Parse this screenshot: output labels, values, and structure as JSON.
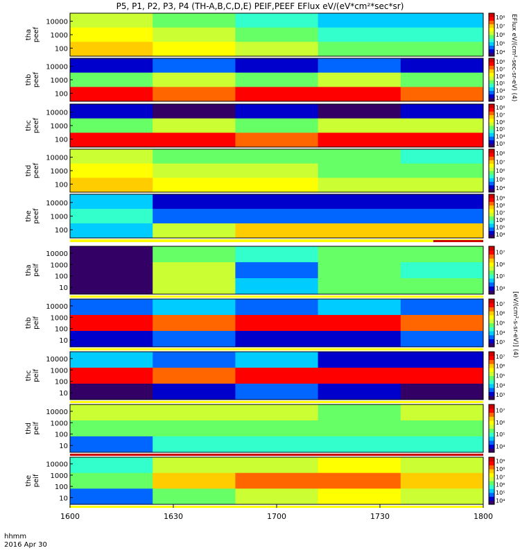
{
  "header": {
    "title": "P5, P1, P2, P3, P4 (TH-A,B,C,D,E) PEIF,PEEF EFlux eV/(eV*cm²*sec*sr)"
  },
  "footer": {
    "time_label": "hhmm",
    "date_label": "2016 Apr 30"
  },
  "colorbar_titles": {
    "electron": "EFlux eV/(cm²-sec-sr-eV) (4)",
    "ion": "[eV/(cm²-s-sr-eV)] (4)"
  },
  "colors": {
    "scale": [
      "#330066",
      "#0000cc",
      "#0066ff",
      "#00ccff",
      "#33ffcc",
      "#66ff66",
      "#ccff33",
      "#ffff00",
      "#ffcc00",
      "#ff6600",
      "#ff0000",
      "#cc0000"
    ],
    "marker_red": "#cc0000",
    "marker_yellow": "#ffff00"
  },
  "chart_data": {
    "type": "heatmap",
    "x_label": "hhmm",
    "x_ticks": [
      "1600",
      "1630",
      "1700",
      "1730",
      "1800"
    ],
    "x_range": [
      "1600",
      "1800"
    ],
    "y_scale": "log",
    "panels": [
      {
        "ylabel": "tha peef",
        "yticks": [
          "10000",
          "1000",
          "100"
        ],
        "cbar_ticks": [
          "10⁴",
          "10⁵",
          "10⁶",
          "10⁷",
          "10⁸"
        ],
        "bands": [
          [
            "#ccff33",
            "#66ff66",
            "#33ffcc",
            "#00ccff",
            "#00ccff"
          ],
          [
            "#ffff00",
            "#ccff33",
            "#66ff66",
            "#33ffcc",
            "#33ffcc"
          ],
          [
            "#ffcc00",
            "#ffff00",
            "#ccff33",
            "#66ff66",
            "#66ff66"
          ]
        ]
      },
      {
        "ylabel": "thb peef",
        "yticks": [
          "10000",
          "1000",
          "100"
        ],
        "cbar_ticks": [
          "10³",
          "10⁴",
          "10⁵",
          "10⁶",
          "10⁷",
          "10⁸"
        ],
        "bands": [
          [
            "#0000cc",
            "#0066ff",
            "#0000cc",
            "#0066ff",
            "#0000cc"
          ],
          [
            "#66ff66",
            "#ccff33",
            "#66ff66",
            "#ccff33",
            "#66ff66"
          ],
          [
            "#ff0000",
            "#ff6600",
            "#ff0000",
            "#ff0000",
            "#ff6600"
          ]
        ]
      },
      {
        "ylabel": "thc peef",
        "yticks": [
          "10000",
          "1000",
          "100"
        ],
        "cbar_ticks": [
          "10³",
          "10⁴",
          "10⁵",
          "10⁶",
          "10⁷",
          "10⁸"
        ],
        "bands": [
          [
            "#0000cc",
            "#330066",
            "#0000cc",
            "#330066",
            "#0000cc"
          ],
          [
            "#66ff66",
            "#ccff33",
            "#66ff66",
            "#ccff33",
            "#ccff33"
          ],
          [
            "#ff0000",
            "#ff0000",
            "#ff6600",
            "#ff0000",
            "#ff0000"
          ]
        ]
      },
      {
        "ylabel": "thd peef",
        "yticks": [
          "10000",
          "1000",
          "100"
        ],
        "cbar_ticks": [
          "10⁴",
          "10⁵",
          "10⁶",
          "10⁷",
          "10⁸"
        ],
        "bands": [
          [
            "#ccff33",
            "#66ff66",
            "#66ff66",
            "#66ff66",
            "#33ffcc"
          ],
          [
            "#ffff00",
            "#ccff33",
            "#ccff33",
            "#66ff66",
            "#66ff66"
          ],
          [
            "#ffcc00",
            "#ffff00",
            "#ffff00",
            "#ccff33",
            "#ccff33"
          ]
        ]
      },
      {
        "ylabel": "the peef",
        "yticks": [
          "10000",
          "1000",
          "100"
        ],
        "cbar_ticks": [
          "10⁴",
          "10⁵",
          "10⁶",
          "10⁷",
          "10⁸",
          "10⁹"
        ],
        "bands": [
          [
            "#00ccff",
            "#0000cc",
            "#0000cc",
            "#0000cc",
            "#0000cc"
          ],
          [
            "#33ffcc",
            "#0066ff",
            "#0066ff",
            "#0066ff",
            "#0066ff"
          ],
          [
            "#00ccff",
            "#ccff33",
            "#ffcc00",
            "#ffcc00",
            "#ffcc00"
          ]
        ]
      },
      {
        "ylabel": "tha peif",
        "yticks": [
          "10000",
          "1000",
          "100",
          "10"
        ],
        "cbar_ticks": [
          "10⁴",
          "10⁵",
          "10⁶",
          "10⁷"
        ],
        "bands": [
          [
            "#330066",
            "#66ff66",
            "#33ffcc",
            "#66ff66",
            "#66ff66"
          ],
          [
            "#330066",
            "#ccff33",
            "#0066ff",
            "#66ff66",
            "#33ffcc"
          ],
          [
            "#330066",
            "#ccff33",
            "#00ccff",
            "#66ff66",
            "#66ff66"
          ]
        ]
      },
      {
        "ylabel": "thb peif",
        "yticks": [
          "10000",
          "1000",
          "100",
          "10"
        ],
        "cbar_ticks": [
          "10³",
          "10⁴",
          "10⁵",
          "10⁶",
          "10⁷"
        ],
        "bands": [
          [
            "#0066ff",
            "#00ccff",
            "#0066ff",
            "#00ccff",
            "#0066ff"
          ],
          [
            "#ff0000",
            "#ff6600",
            "#ff0000",
            "#ff0000",
            "#ff6600"
          ],
          [
            "#0000cc",
            "#0066ff",
            "#0000cc",
            "#0000cc",
            "#0066ff"
          ]
        ]
      },
      {
        "ylabel": "thc peif",
        "yticks": [
          "10000",
          "1000",
          "100",
          "10"
        ],
        "cbar_ticks": [
          "10³",
          "10⁴",
          "10⁵",
          "10⁶",
          "10⁷"
        ],
        "bands": [
          [
            "#00ccff",
            "#0066ff",
            "#00ccff",
            "#0000cc",
            "#0000cc"
          ],
          [
            "#ff0000",
            "#ff6600",
            "#ff0000",
            "#ff0000",
            "#ff0000"
          ],
          [
            "#330066",
            "#0000cc",
            "#0066ff",
            "#0000cc",
            "#330066"
          ]
        ]
      },
      {
        "ylabel": "thd peif",
        "yticks": [
          "10000",
          "1000",
          "100",
          "10"
        ],
        "cbar_ticks": [
          "10⁴",
          "10⁵",
          "10⁶",
          "10⁷"
        ],
        "bands": [
          [
            "#ccff33",
            "#ccff33",
            "#ccff33",
            "#66ff66",
            "#ccff33"
          ],
          [
            "#66ff66",
            "#66ff66",
            "#66ff66",
            "#66ff66",
            "#66ff66"
          ],
          [
            "#0066ff",
            "#33ffcc",
            "#33ffcc",
            "#33ffcc",
            "#33ffcc"
          ]
        ]
      },
      {
        "ylabel": "the peif",
        "yticks": [
          "10000",
          "1000",
          "100",
          "10"
        ],
        "cbar_ticks": [
          "10⁴",
          "10⁵",
          "10⁶",
          "10⁷",
          "10⁸",
          "10⁹"
        ],
        "bands": [
          [
            "#33ffcc",
            "#ccff33",
            "#ccff33",
            "#ffff00",
            "#ccff33"
          ],
          [
            "#66ff66",
            "#ffcc00",
            "#ff6600",
            "#ff6600",
            "#ffcc00"
          ],
          [
            "#0066ff",
            "#66ff66",
            "#ccff33",
            "#ffff00",
            "#ccff33"
          ]
        ]
      }
    ]
  }
}
